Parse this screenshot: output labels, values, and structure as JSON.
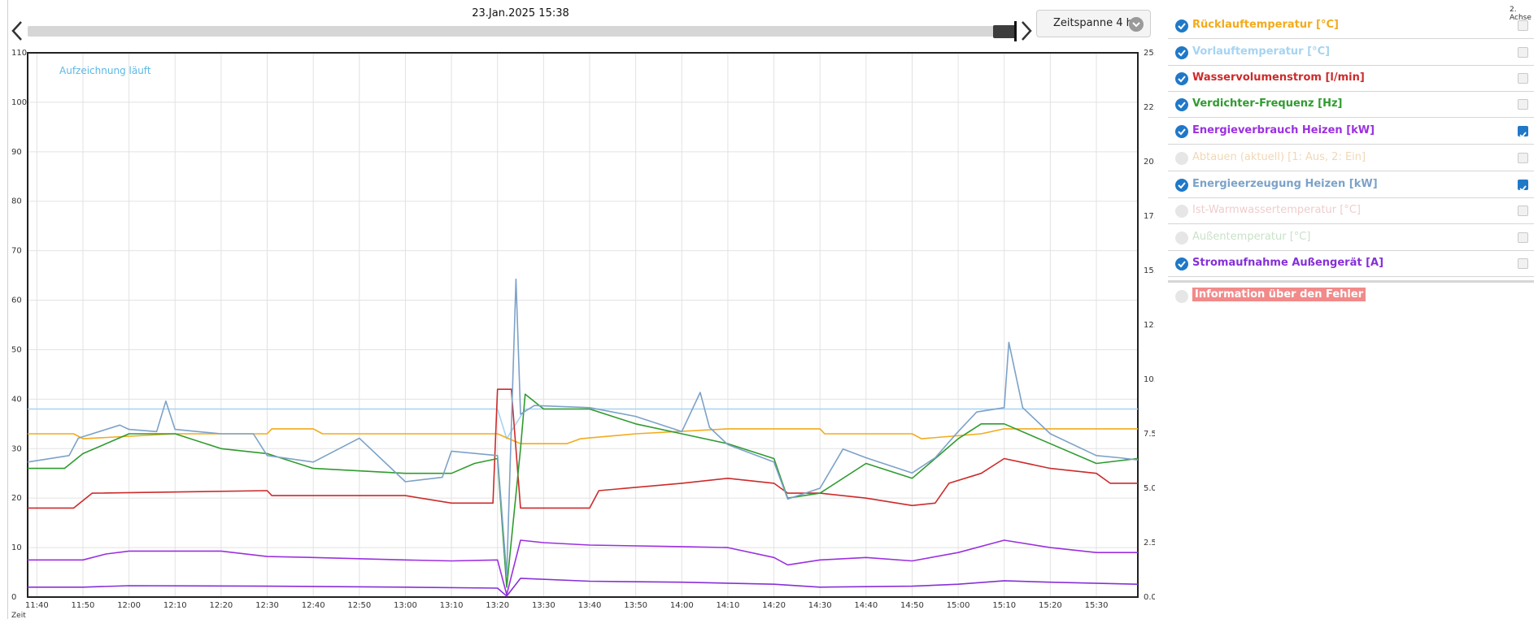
{
  "header": {
    "date": "23.Jan.2025 15:38",
    "timespan_label": "Zeitspanne 4 h",
    "axis2_label": "2. Achse"
  },
  "legend": [
    {
      "label": "Rücklauftemperatur [°C]",
      "color": "#f2ab1c",
      "enabled": true,
      "axis2": false
    },
    {
      "label": "Vorlauftemperatur [°C]",
      "color": "#a6d4f2",
      "enabled": true,
      "axis2": false
    },
    {
      "label": "Wasservolumenstrom [l/min]",
      "color": "#cc2b2b",
      "enabled": true,
      "axis2": false
    },
    {
      "label": "Verdichter-Frequenz [Hz]",
      "color": "#2f9b2f",
      "enabled": true,
      "axis2": false
    },
    {
      "label": "Energieverbrauch Heizen [kW]",
      "color": "#9b30e0",
      "enabled": true,
      "axis2": true
    },
    {
      "label": "Abtauen (aktuell) [1: Aus, 2: Ein]",
      "color": "#e4b877",
      "enabled": false,
      "axis2": false
    },
    {
      "label": "Energieerzeugung Heizen [kW]",
      "color": "#7ca2c8",
      "enabled": true,
      "axis2": true
    },
    {
      "label": "Ist-Warmwassertemperatur [°C]",
      "color": "#e2a4a4",
      "enabled": false,
      "axis2": false
    },
    {
      "label": "Außentemperatur [°C]",
      "color": "#9cc99c",
      "enabled": false,
      "axis2": false
    },
    {
      "label": "Stromaufnahme Außengerät [A]",
      "color": "#8630d8",
      "enabled": true,
      "axis2": false
    }
  ],
  "error_label": "Information über den Fehler",
  "chart_data": {
    "type": "line",
    "annotation": "Aufzeichnung läuft",
    "xlabel": "Zeit",
    "x_ticks": [
      "11:40",
      "11:50",
      "12:00",
      "12:10",
      "12:20",
      "12:30",
      "12:40",
      "12:50",
      "13:00",
      "13:10",
      "13:20",
      "13:30",
      "13:40",
      "13:50",
      "14:00",
      "14:10",
      "14:20",
      "14:30",
      "14:40",
      "14:50",
      "15:00",
      "15:10",
      "15:20",
      "15:30"
    ],
    "x_range": [
      "11:38",
      "15:39"
    ],
    "y_left": {
      "ylim": [
        0,
        110
      ],
      "ticks": [
        "0",
        "10",
        "20",
        "30",
        "40",
        "50",
        "60",
        "70",
        "80",
        "90",
        "100",
        "110"
      ]
    },
    "y_right": {
      "ylim": [
        0,
        25
      ],
      "ticks": [
        "0.0",
        "2.5",
        "5.0",
        "7.5",
        "10.0",
        "12.5",
        "15.0",
        "17.5",
        "20.0",
        "22.5",
        "25.0"
      ]
    },
    "grid": true,
    "series": [
      {
        "color": "#a6d4f2",
        "axis": "left",
        "points": [
          [
            "11:38",
            38
          ],
          [
            "11:48",
            38
          ],
          [
            "12:10",
            38
          ],
          [
            "12:30",
            38
          ],
          [
            "12:40",
            38
          ],
          [
            "13:00",
            38
          ],
          [
            "13:10",
            38
          ],
          [
            "13:20",
            38
          ],
          [
            "13:22",
            32
          ],
          [
            "13:26",
            38
          ],
          [
            "13:40",
            38
          ],
          [
            "14:00",
            38
          ],
          [
            "14:10",
            38
          ],
          [
            "14:30",
            38
          ],
          [
            "14:40",
            38
          ],
          [
            "14:55",
            38
          ],
          [
            "15:00",
            38
          ],
          [
            "15:10",
            38
          ],
          [
            "15:20",
            38
          ],
          [
            "15:39",
            38
          ]
        ]
      },
      {
        "color": "#f2ab1c",
        "axis": "left",
        "points": [
          [
            "11:38",
            33
          ],
          [
            "11:48",
            33
          ],
          [
            "11:50",
            32
          ],
          [
            "12:10",
            33
          ],
          [
            "12:30",
            33
          ],
          [
            "12:31",
            34
          ],
          [
            "12:40",
            34
          ],
          [
            "12:42",
            33
          ],
          [
            "13:10",
            33
          ],
          [
            "13:20",
            33
          ],
          [
            "13:25",
            31
          ],
          [
            "13:35",
            31
          ],
          [
            "13:38",
            32
          ],
          [
            "13:50",
            33
          ],
          [
            "14:10",
            34
          ],
          [
            "14:30",
            34
          ],
          [
            "14:31",
            33
          ],
          [
            "14:50",
            33
          ],
          [
            "14:52",
            32
          ],
          [
            "15:05",
            33
          ],
          [
            "15:10",
            34
          ],
          [
            "15:20",
            34
          ],
          [
            "15:39",
            34
          ]
        ]
      },
      {
        "color": "#cc2b2b",
        "axis": "left",
        "points": [
          [
            "11:38",
            18
          ],
          [
            "11:48",
            18
          ],
          [
            "11:52",
            21
          ],
          [
            "12:30",
            21.5
          ],
          [
            "12:31",
            20.5
          ],
          [
            "13:00",
            20.5
          ],
          [
            "13:10",
            19
          ],
          [
            "13:19",
            19
          ],
          [
            "13:20",
            42
          ],
          [
            "13:23",
            42
          ],
          [
            "13:25",
            18
          ],
          [
            "13:40",
            18
          ],
          [
            "13:42",
            21.5
          ],
          [
            "14:00",
            23
          ],
          [
            "14:10",
            24
          ],
          [
            "14:20",
            23
          ],
          [
            "14:23",
            21
          ],
          [
            "14:30",
            21
          ],
          [
            "14:40",
            20
          ],
          [
            "14:50",
            18.5
          ],
          [
            "14:55",
            19
          ],
          [
            "14:58",
            23
          ],
          [
            "15:05",
            25
          ],
          [
            "15:10",
            28
          ],
          [
            "15:20",
            26
          ],
          [
            "15:30",
            25
          ],
          [
            "15:33",
            23
          ],
          [
            "15:39",
            23
          ]
        ]
      },
      {
        "color": "#2f9b2f",
        "axis": "left",
        "points": [
          [
            "11:38",
            26
          ],
          [
            "11:46",
            26
          ],
          [
            "11:50",
            29
          ],
          [
            "12:00",
            33
          ],
          [
            "12:10",
            33
          ],
          [
            "12:20",
            30
          ],
          [
            "12:30",
            29
          ],
          [
            "12:40",
            26
          ],
          [
            "13:00",
            25
          ],
          [
            "13:10",
            25
          ],
          [
            "13:15",
            27
          ],
          [
            "13:20",
            28
          ],
          [
            "13:22",
            2
          ],
          [
            "13:25",
            30
          ],
          [
            "13:26",
            41
          ],
          [
            "13:30",
            38
          ],
          [
            "13:40",
            38
          ],
          [
            "13:50",
            35
          ],
          [
            "14:00",
            33
          ],
          [
            "14:10",
            31
          ],
          [
            "14:20",
            28
          ],
          [
            "14:23",
            20
          ],
          [
            "14:30",
            21
          ],
          [
            "14:40",
            27
          ],
          [
            "14:50",
            24
          ],
          [
            "14:55",
            28
          ],
          [
            "15:00",
            32
          ],
          [
            "15:05",
            35
          ],
          [
            "15:10",
            35
          ],
          [
            "15:20",
            31
          ],
          [
            "15:30",
            27
          ],
          [
            "15:39",
            28
          ]
        ]
      },
      {
        "color": "#7ca2c8",
        "axis": "right",
        "points": [
          [
            "11:38",
            6.2
          ],
          [
            "11:47",
            6.5
          ],
          [
            "11:49",
            7.3
          ],
          [
            "11:58",
            7.9
          ],
          [
            "12:00",
            7.7
          ],
          [
            "12:06",
            7.6
          ],
          [
            "12:08",
            9.0
          ],
          [
            "12:10",
            7.7
          ],
          [
            "12:20",
            7.5
          ],
          [
            "12:27",
            7.5
          ],
          [
            "12:30",
            6.5
          ],
          [
            "12:40",
            6.2
          ],
          [
            "12:50",
            7.3
          ],
          [
            "13:00",
            5.3
          ],
          [
            "13:08",
            5.5
          ],
          [
            "13:10",
            6.7
          ],
          [
            "13:20",
            6.5
          ],
          [
            "13:22",
            1.0
          ],
          [
            "13:24",
            14.6
          ],
          [
            "13:25",
            8.4
          ],
          [
            "13:28",
            8.8
          ],
          [
            "13:40",
            8.7
          ],
          [
            "13:50",
            8.3
          ],
          [
            "14:00",
            7.6
          ],
          [
            "14:04",
            9.4
          ],
          [
            "14:06",
            7.8
          ],
          [
            "14:10",
            7.0
          ],
          [
            "14:20",
            6.2
          ],
          [
            "14:23",
            4.5
          ],
          [
            "14:30",
            5.0
          ],
          [
            "14:35",
            6.8
          ],
          [
            "14:40",
            6.4
          ],
          [
            "14:50",
            5.7
          ],
          [
            "14:55",
            6.4
          ],
          [
            "15:00",
            7.6
          ],
          [
            "15:04",
            8.5
          ],
          [
            "15:10",
            8.7
          ],
          [
            "15:11",
            11.7
          ],
          [
            "15:14",
            8.7
          ],
          [
            "15:20",
            7.5
          ],
          [
            "15:30",
            6.5
          ],
          [
            "15:35",
            6.4
          ],
          [
            "15:39",
            6.3
          ]
        ]
      },
      {
        "color": "#9b30e0",
        "axis": "left",
        "points": [
          [
            "11:38",
            7.5
          ],
          [
            "11:50",
            7.5
          ],
          [
            "11:55",
            8.7
          ],
          [
            "12:00",
            9.3
          ],
          [
            "12:20",
            9.3
          ],
          [
            "12:30",
            8.2
          ],
          [
            "12:40",
            8.0
          ],
          [
            "13:00",
            7.5
          ],
          [
            "13:10",
            7.3
          ],
          [
            "13:20",
            7.5
          ],
          [
            "13:22",
            0.5
          ],
          [
            "13:25",
            11.5
          ],
          [
            "13:30",
            11
          ],
          [
            "13:40",
            10.5
          ],
          [
            "14:00",
            10.2
          ],
          [
            "14:10",
            10.0
          ],
          [
            "14:20",
            8
          ],
          [
            "14:23",
            6.5
          ],
          [
            "14:30",
            7.5
          ],
          [
            "14:40",
            8
          ],
          [
            "14:50",
            7.3
          ],
          [
            "15:00",
            9
          ],
          [
            "15:10",
            11.5
          ],
          [
            "15:20",
            10
          ],
          [
            "15:30",
            9
          ],
          [
            "15:39",
            9
          ]
        ]
      },
      {
        "color": "#8630d8",
        "axis": "left",
        "points": [
          [
            "11:38",
            2
          ],
          [
            "11:50",
            2
          ],
          [
            "12:00",
            2.3
          ],
          [
            "12:30",
            2.2
          ],
          [
            "13:00",
            2.0
          ],
          [
            "13:20",
            1.8
          ],
          [
            "13:22",
            0.2
          ],
          [
            "13:25",
            3.8
          ],
          [
            "13:40",
            3.2
          ],
          [
            "14:00",
            3.0
          ],
          [
            "14:20",
            2.6
          ],
          [
            "14:30",
            2.0
          ],
          [
            "14:50",
            2.2
          ],
          [
            "15:00",
            2.6
          ],
          [
            "15:10",
            3.3
          ],
          [
            "15:20",
            3.0
          ],
          [
            "15:39",
            2.6
          ]
        ]
      }
    ]
  }
}
